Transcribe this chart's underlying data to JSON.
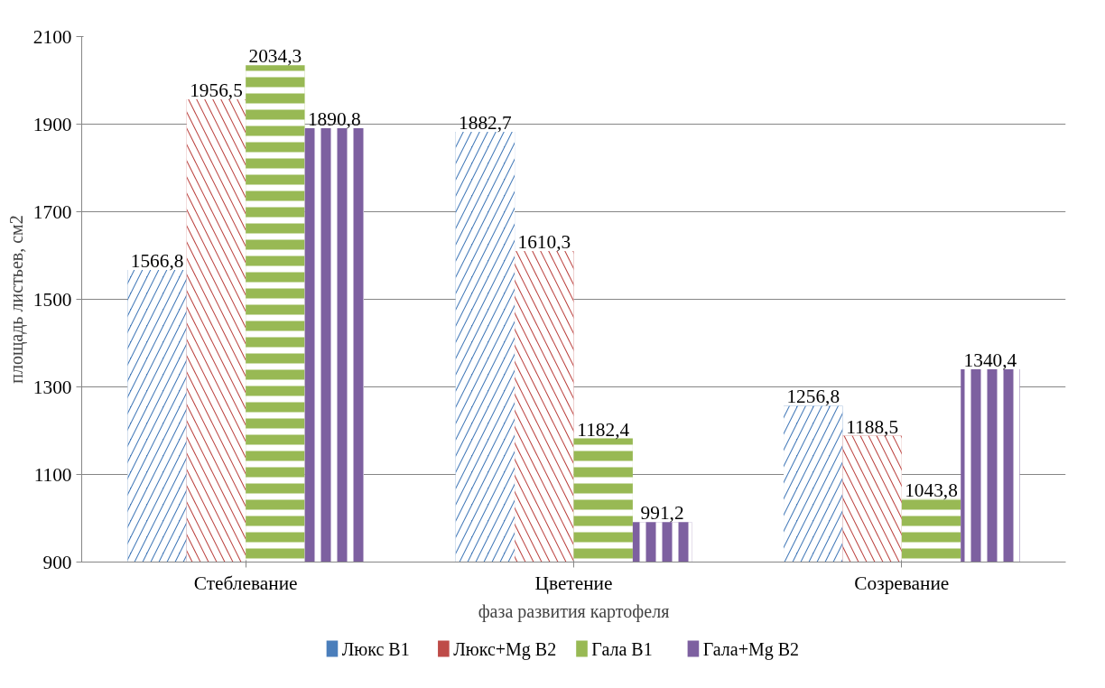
{
  "chart_data": {
    "type": "bar",
    "xlabel": "фаза развития картофеля",
    "ylabel": "площадь листьев, см2",
    "categories": [
      "Стеблевание",
      "Цветение",
      "Созревание"
    ],
    "series": [
      {
        "name": "Люкс В1",
        "color": "#4a7ebb",
        "values": [
          1566.8,
          1882.7,
          1256.8
        ],
        "value_labels": [
          "1566,8",
          "1882,7",
          "1256,8"
        ]
      },
      {
        "name": "Люкс+Mg В2",
        "color": "#be4b48",
        "values": [
          1956.5,
          1610.3,
          1188.5
        ],
        "value_labels": [
          "1956,5",
          "1610,3",
          "1188,5"
        ]
      },
      {
        "name": "Гала В1",
        "color": "#98b954",
        "values": [
          2034.3,
          1182.4,
          1043.8
        ],
        "value_labels": [
          "2034,3",
          "1182,4",
          "1043,8"
        ]
      },
      {
        "name": "Гала+Mg В2",
        "color": "#7d60a0",
        "values": [
          1890.8,
          991.2,
          1340.4
        ],
        "value_labels": [
          "1890,8",
          "991,2",
          "1340,4"
        ]
      }
    ],
    "ylim": [
      900,
      2100
    ],
    "yticks": [
      900,
      1100,
      1300,
      1500,
      1700,
      1900,
      2100
    ],
    "grid": "y",
    "legend": "bottom"
  }
}
